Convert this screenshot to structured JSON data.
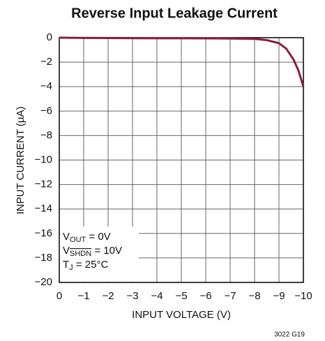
{
  "chart_data": {
    "type": "line",
    "title": "Reverse Input Leakage Current",
    "x_label": "INPUT VOLTAGE (V)",
    "y_label": "INPUT CURRENT (µA)",
    "footnote": "3022 G19",
    "annotations": [
      [
        "V",
        "OUT",
        " = 0V"
      ],
      [
        "V",
        "SHDN",
        " = 10V"
      ],
      [
        "T",
        "J",
        " = 25°C"
      ]
    ],
    "xlim": [
      0,
      -10
    ],
    "ylim": [
      -20,
      0
    ],
    "xticks": [
      0,
      {
        "value": -1,
        "label": "−1"
      },
      {
        "value": -2,
        "label": "−2"
      },
      {
        "value": -3,
        "label": "−3"
      },
      {
        "value": -4,
        "label": "−4"
      },
      {
        "value": -5,
        "label": "−5"
      },
      {
        "value": -6,
        "label": "−6"
      },
      {
        "value": -7,
        "label": "−7"
      },
      {
        "value": -8,
        "label": "−8"
      },
      {
        "value": -9,
        "label": "−9"
      },
      {
        "value": -10,
        "label": "−10"
      }
    ],
    "yticks": [
      {
        "value": -20,
        "label": "−20"
      },
      {
        "value": -18,
        "label": "−18"
      },
      {
        "value": -16,
        "label": "−16"
      },
      {
        "value": -14,
        "label": "−14"
      },
      {
        "value": -12,
        "label": "−12"
      },
      {
        "value": -10,
        "label": "−10"
      },
      {
        "value": -8,
        "label": "−8"
      },
      {
        "value": -6,
        "label": "−6"
      },
      {
        "value": -4,
        "label": "−4"
      },
      {
        "value": -2,
        "label": "−2"
      },
      0
    ],
    "grid": true,
    "series": [
      {
        "color": "#8c1c3c",
        "x": [
          0,
          -1,
          -2,
          -3,
          -4,
          -5,
          -6,
          -7,
          -8,
          -8.5,
          -9,
          -9.3,
          -9.6,
          -9.8,
          -10
        ],
        "values": [
          0,
          -0.02,
          -0.03,
          -0.04,
          -0.05,
          -0.05,
          -0.06,
          -0.07,
          -0.1,
          -0.2,
          -0.45,
          -0.9,
          -1.8,
          -2.7,
          -4
        ]
      }
    ]
  }
}
